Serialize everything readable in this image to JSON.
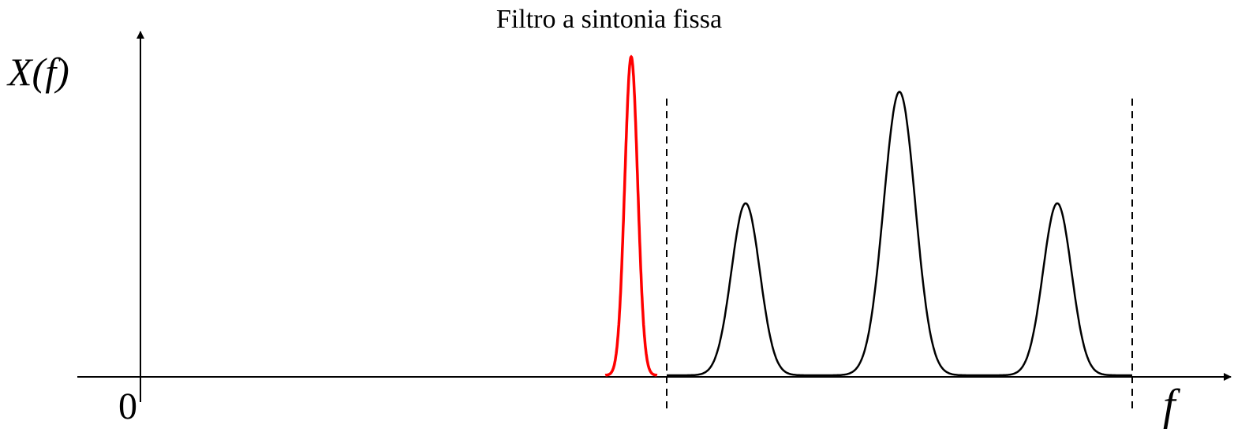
{
  "title": "Filtro a sintonia fissa",
  "y_axis_label": "X(f)",
  "x_axis_label": "f",
  "origin_label": "0",
  "colors": {
    "filter": "#ff0000",
    "spectrum": "#000000",
    "axes": "#000000"
  },
  "filter": {
    "center": 0.8,
    "sigma": 0.0082,
    "amplitude": 1.0
  },
  "spectrum_peaks": [
    {
      "center": 0.945,
      "sigma": 0.018,
      "amplitude": 0.54
    },
    {
      "center": 1.14,
      "sigma": 0.02,
      "amplitude": 0.89
    },
    {
      "center": 1.34,
      "sigma": 0.018,
      "amplitude": 0.54
    }
  ],
  "band_limits": [
    0.845,
    1.435
  ],
  "spectrum_range": [
    0.845,
    1.435
  ]
}
